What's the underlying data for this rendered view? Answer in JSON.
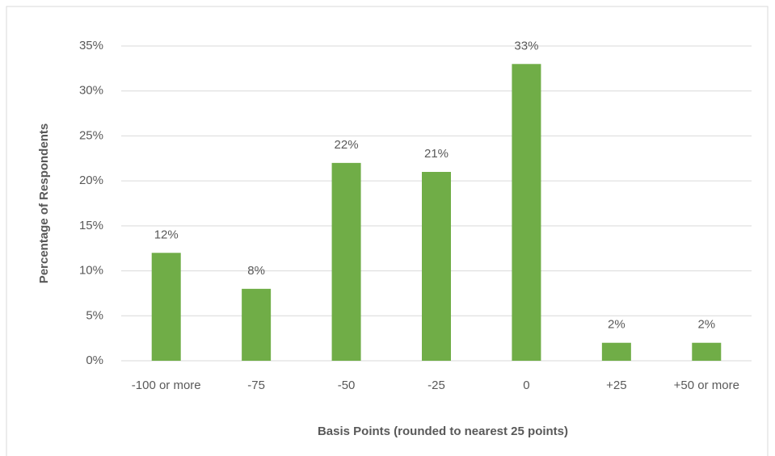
{
  "chart_data": {
    "type": "bar",
    "x_label": "Basis Points (rounded to nearest 25 points)",
    "y_label": "Percentage of Respondents",
    "categories": [
      "-100 or more",
      "-75",
      "-50",
      "-25",
      "0",
      "+25",
      "+50 or more"
    ],
    "values": [
      12,
      8,
      22,
      21,
      33,
      2,
      2
    ],
    "value_labels": [
      "12%",
      "8%",
      "22%",
      "21%",
      "33%",
      "2%",
      "2%"
    ],
    "color": "#70ad47",
    "ylim": [
      0,
      35
    ],
    "yticks": [
      {
        "value": 0,
        "label": "0%"
      },
      {
        "value": 5,
        "label": "5%"
      },
      {
        "value": 10,
        "label": "10%"
      },
      {
        "value": 15,
        "label": "15%"
      },
      {
        "value": 20,
        "label": "20%"
      },
      {
        "value": 25,
        "label": "25%"
      },
      {
        "value": 30,
        "label": "30%"
      },
      {
        "value": 35,
        "label": "35%"
      }
    ],
    "grid": true
  }
}
